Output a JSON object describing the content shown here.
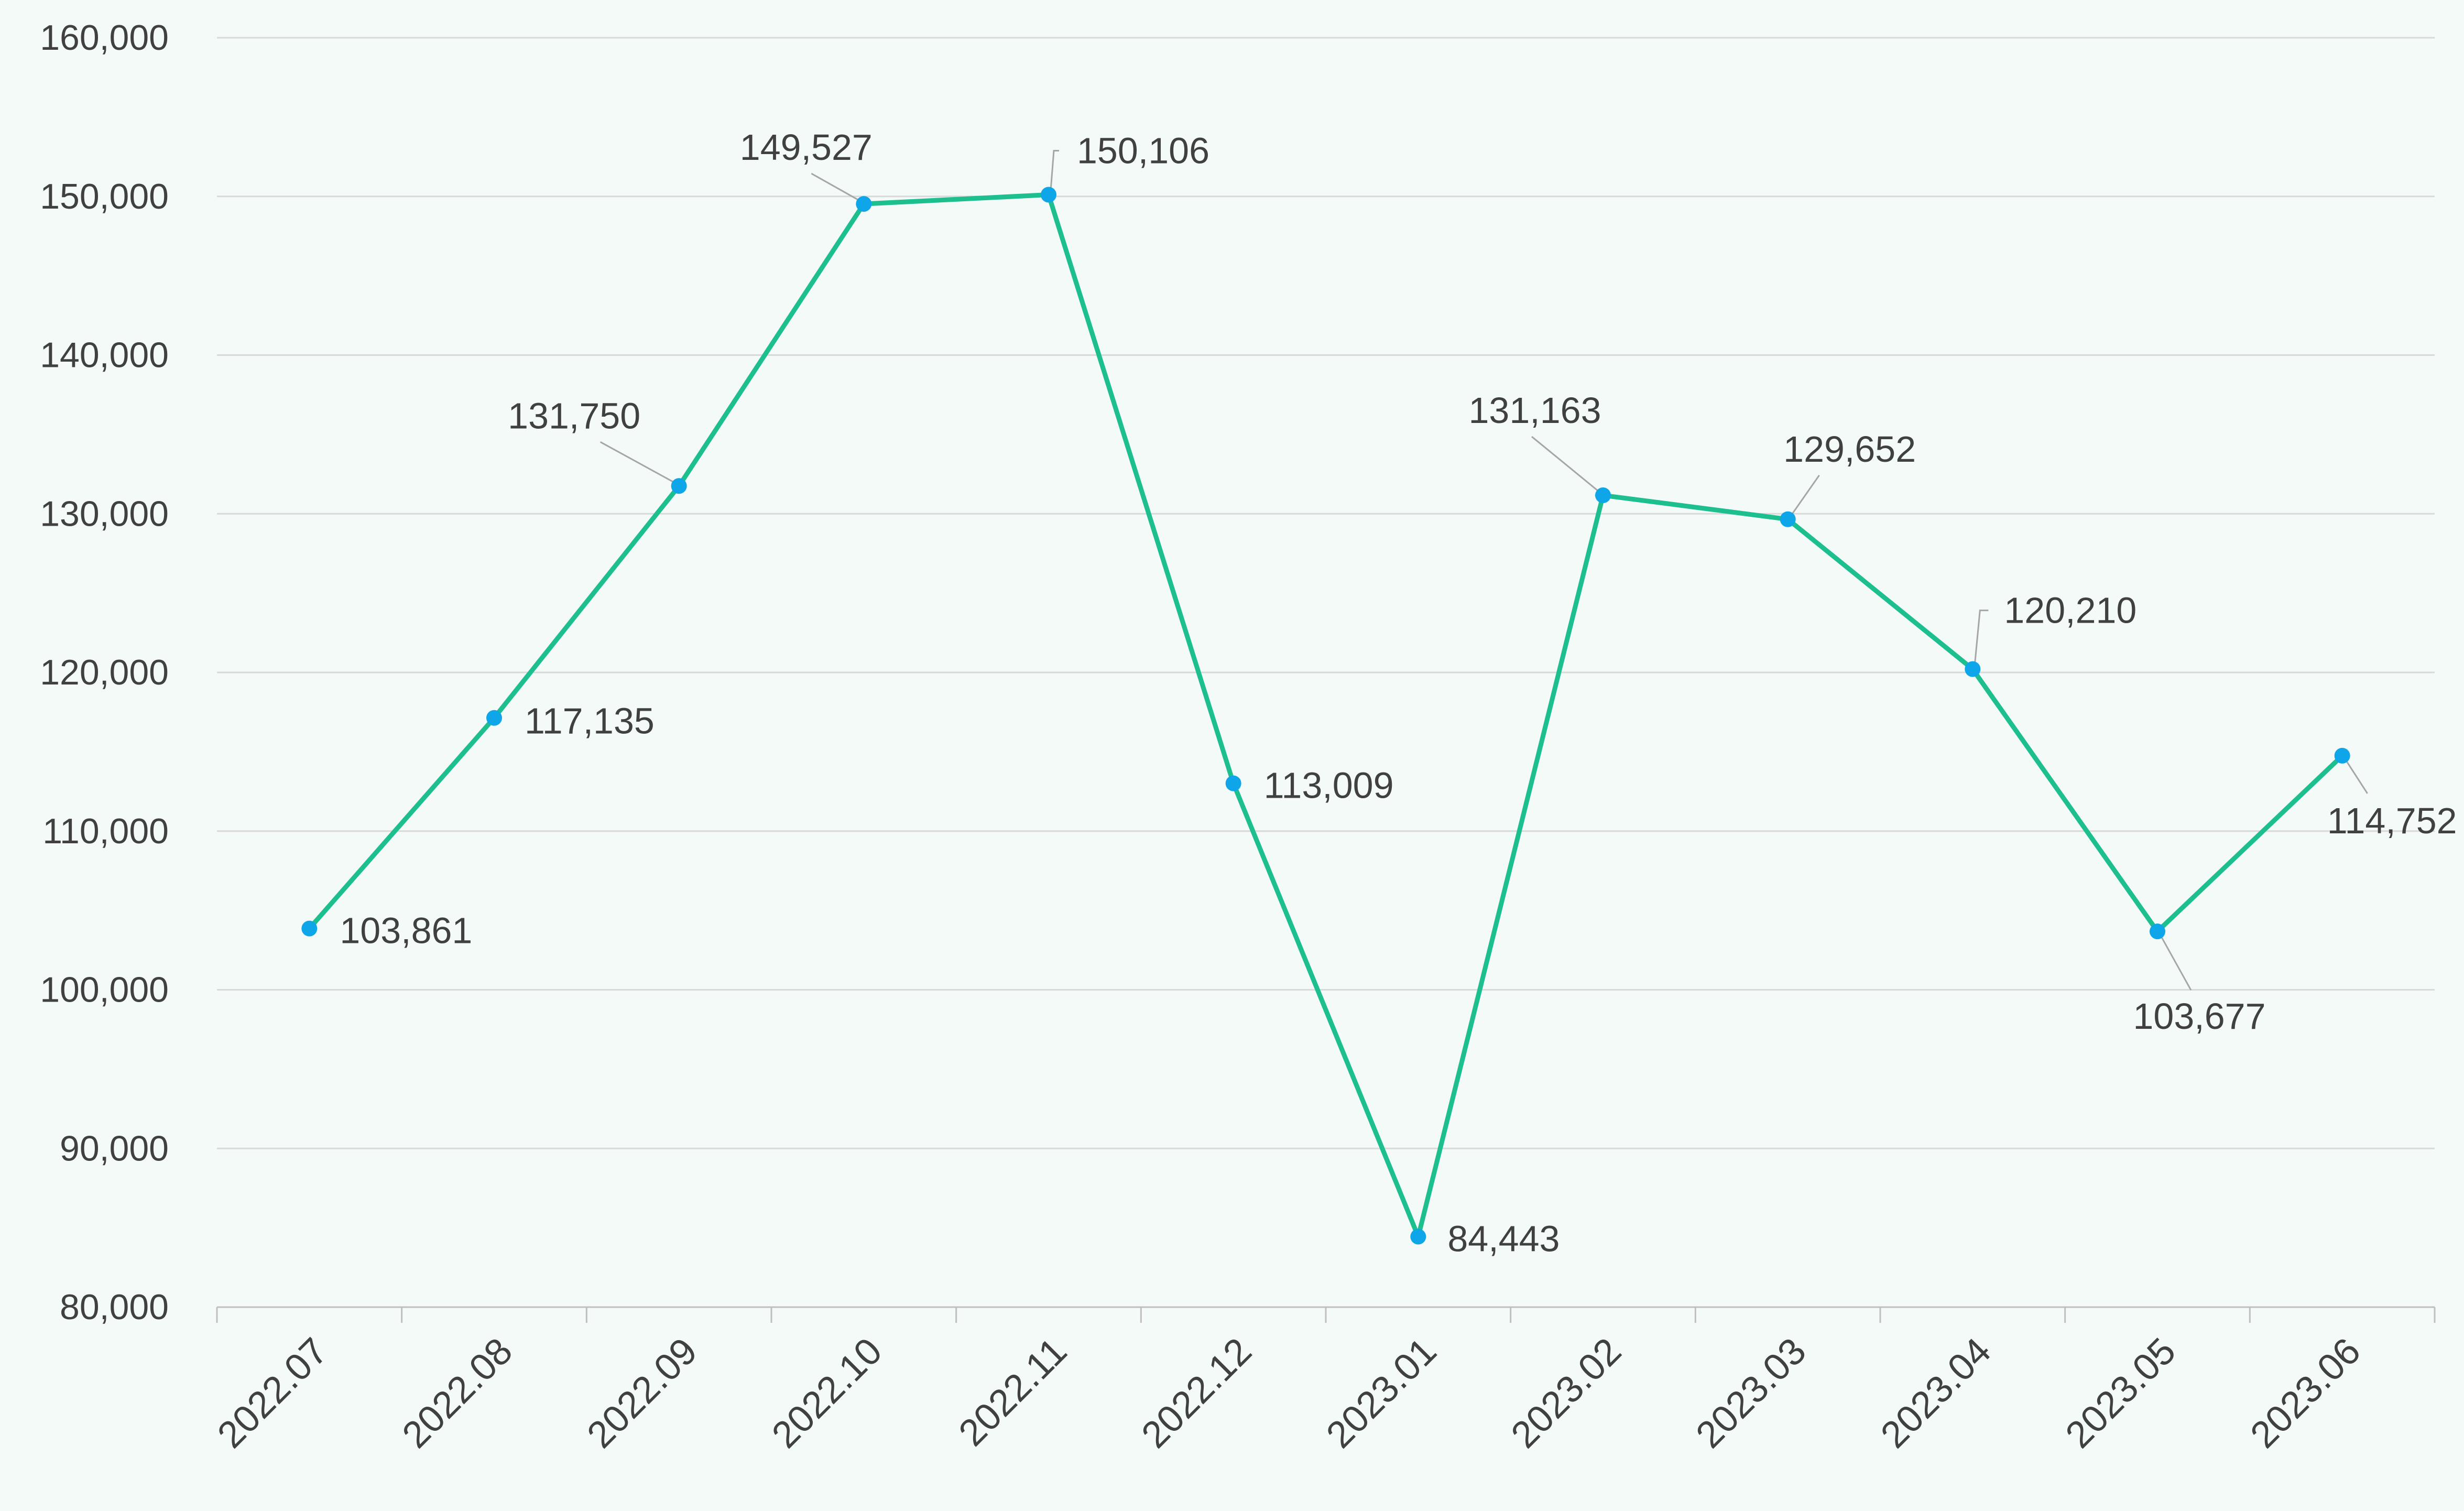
{
  "colors": {
    "background": "#f3faf7",
    "line": "#1dbf8f",
    "marker": "#0ea5e9",
    "grid": "#d9d9d9",
    "axis": "#bfbfbf",
    "text": "#404040",
    "leader": "#a6a6a6"
  },
  "chart_data": {
    "type": "line",
    "title": "",
    "xlabel": "",
    "ylabel": "",
    "ylim": [
      80000,
      160000
    ],
    "ytick_step": 10000,
    "ytick_labels": [
      "80,000",
      "90,000",
      "100,000",
      "110,000",
      "120,000",
      "130,000",
      "140,000",
      "150,000",
      "160,000"
    ],
    "grid": true,
    "legend": "none",
    "categories": [
      "2022.07",
      "2022.08",
      "2022.09",
      "2022.10",
      "2022.11",
      "2022.12",
      "2023.01",
      "2023.02",
      "2023.03",
      "2023.04",
      "2023.05",
      "2023.06"
    ],
    "series": [
      {
        "values": [
          103861,
          117135,
          131750,
          149527,
          150106,
          113009,
          84443,
          131163,
          129652,
          120210,
          103677,
          114752
        ],
        "labels": [
          "103,861",
          "117,135",
          "131,750",
          "149,527",
          "150,106",
          "113,009",
          "84,443",
          "131,163",
          "129,652",
          "120,210",
          "103,677",
          "114,752"
        ]
      }
    ]
  }
}
